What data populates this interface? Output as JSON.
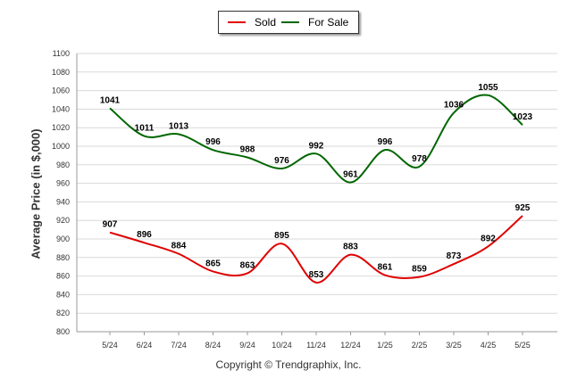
{
  "chart_data": {
    "type": "line",
    "categories": [
      "5/24",
      "6/24",
      "7/24",
      "8/24",
      "9/24",
      "10/24",
      "11/24",
      "12/24",
      "1/25",
      "2/25",
      "3/25",
      "4/25",
      "5/25"
    ],
    "series": [
      {
        "name": "Sold",
        "color": "#e00000",
        "values": [
          907,
          896,
          884,
          865,
          863,
          895,
          853,
          883,
          861,
          859,
          873,
          892,
          925
        ]
      },
      {
        "name": "For Sale",
        "color": "#006600",
        "values": [
          1041,
          1011,
          1013,
          996,
          988,
          976,
          992,
          961,
          996,
          978,
          1036,
          1055,
          1023
        ]
      }
    ],
    "ylabel": "Average Price (in $,000)",
    "xlabel": "",
    "ylim": [
      800,
      1100
    ],
    "yticks": [
      800,
      820,
      840,
      860,
      880,
      900,
      920,
      940,
      960,
      980,
      1000,
      1020,
      1040,
      1060,
      1080,
      1100
    ],
    "legend_position": "top-center",
    "grid": true,
    "data_labels": true
  },
  "legend": {
    "sold_label": "Sold",
    "for_sale_label": "For Sale"
  },
  "footer": {
    "copyright": "Copyright © Trendgraphix, Inc."
  }
}
